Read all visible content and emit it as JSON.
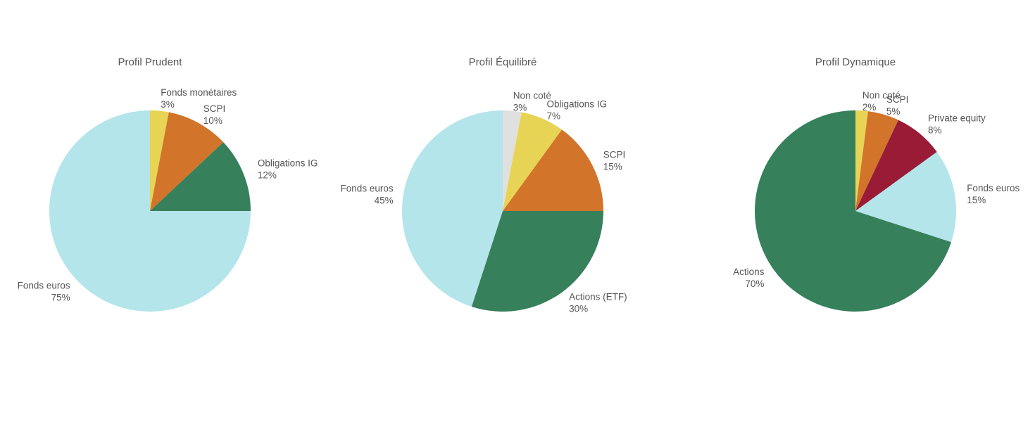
{
  "chart_data": [
    {
      "type": "pie",
      "title": "Profil Prudent",
      "slices": [
        {
          "label": "Fonds monétaires",
          "value": 3,
          "display": "3%",
          "color": "#E8D454"
        },
        {
          "label": "SCPI",
          "value": 10,
          "display": "10%",
          "color": "#D2742A"
        },
        {
          "label": "Obligations IG",
          "value": 12,
          "display": "12%",
          "color": "#36805B"
        },
        {
          "label": "Fonds euros",
          "value": 75,
          "display": "75%",
          "color": "#B3E5EB"
        }
      ]
    },
    {
      "type": "pie",
      "title": "Profil Équilibré",
      "slices": [
        {
          "label": "Non coté",
          "value": 3,
          "display": "3%",
          "color": "#E0E0E0"
        },
        {
          "label": "Obligations IG",
          "value": 7,
          "display": "7%",
          "color": "#E8D454"
        },
        {
          "label": "SCPI",
          "value": 15,
          "display": "15%",
          "color": "#D2742A"
        },
        {
          "label": "Actions (ETF)",
          "value": 30,
          "display": "30%",
          "color": "#36805B"
        },
        {
          "label": "Fonds euros",
          "value": 45,
          "display": "45%",
          "color": "#B3E5EB"
        }
      ]
    },
    {
      "type": "pie",
      "title": "Profil Dynamique",
      "slices": [
        {
          "label": "Non coté",
          "value": 2,
          "display": "2%",
          "color": "#E8D454"
        },
        {
          "label": "SCPI",
          "value": 5,
          "display": "5%",
          "color": "#D2742A"
        },
        {
          "label": "Private equity",
          "value": 8,
          "display": "8%",
          "color": "#9A1B36"
        },
        {
          "label": "Fonds euros",
          "value": 15,
          "display": "15%",
          "color": "#B3E5EB"
        },
        {
          "label": "Actions",
          "value": 70,
          "display": "70%",
          "color": "#36805B"
        }
      ]
    }
  ]
}
